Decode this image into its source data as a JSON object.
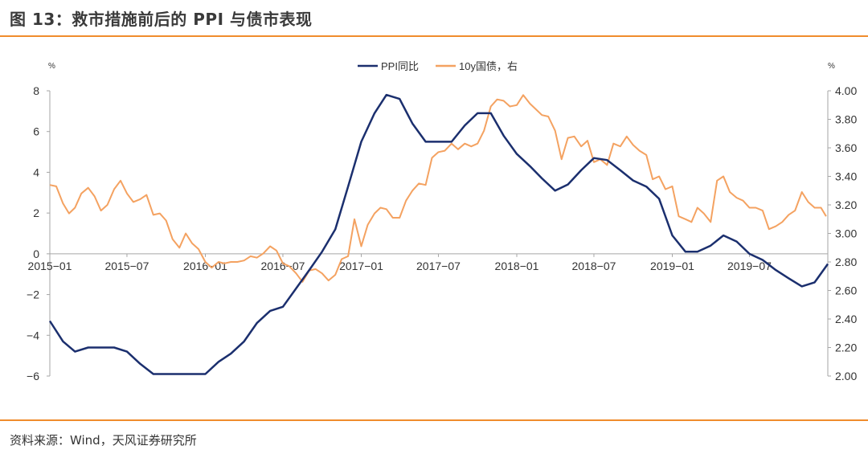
{
  "title": "图 13：救市措施前后的 PPI 与债市表现",
  "source": "资料来源：Wind，天风证券研究所",
  "colors": {
    "accent_rule": "#f08c2c",
    "ppi": "#1b2f6e",
    "yield": "#f4a261"
  },
  "chart_data": {
    "type": "line",
    "left_axis": {
      "unit": "%",
      "ylim": [
        -6,
        8
      ],
      "ticks": [
        "8",
        "6",
        "4",
        "2",
        "0",
        "−2",
        "−4",
        "−6"
      ],
      "tick_values": [
        8,
        6,
        4,
        2,
        0,
        -2,
        -4,
        -6
      ]
    },
    "right_axis": {
      "unit": "%",
      "ylim": [
        2.0,
        4.0
      ],
      "ticks": [
        "4.00",
        "3.80",
        "3.60",
        "3.40",
        "3.20",
        "3.00",
        "2.80",
        "2.60",
        "2.40",
        "2.20",
        "2.00"
      ],
      "tick_values": [
        4.0,
        3.8,
        3.6,
        3.4,
        3.2,
        3.0,
        2.8,
        2.6,
        2.4,
        2.2,
        2.0
      ]
    },
    "x_ticks": [
      "2015−01",
      "2015−07",
      "2016−01",
      "2016−07",
      "2017−01",
      "2017−07",
      "2018−01",
      "2018−07",
      "2019−01",
      "2019−07"
    ],
    "x_tick_dates": [
      "2015-01-01",
      "2015-07-01",
      "2016-01-01",
      "2016-07-01",
      "2017-01-01",
      "2017-07-01",
      "2018-01-01",
      "2018-07-01",
      "2019-01-01",
      "2019-07-01"
    ],
    "grid": false,
    "legend": {
      "placement": "top-center",
      "entries": [
        "PPI同比",
        "10y国债，右"
      ]
    },
    "series": [
      {
        "name": "PPI同比",
        "axis": "left",
        "frequency": "monthly",
        "x": [
          "2014-12",
          "2015-01",
          "2015-02",
          "2015-03",
          "2015-04",
          "2015-05",
          "2015-06",
          "2015-07",
          "2015-08",
          "2015-09",
          "2015-10",
          "2015-11",
          "2015-12",
          "2016-01",
          "2016-02",
          "2016-03",
          "2016-04",
          "2016-05",
          "2016-06",
          "2016-07",
          "2016-08",
          "2016-09",
          "2016-10",
          "2016-11",
          "2016-12",
          "2017-01",
          "2017-02",
          "2017-03",
          "2017-04",
          "2017-05",
          "2017-06",
          "2017-07",
          "2017-08",
          "2017-09",
          "2017-10",
          "2017-11",
          "2017-12",
          "2018-01",
          "2018-02",
          "2018-03",
          "2018-04",
          "2018-05",
          "2018-06",
          "2018-07",
          "2018-08",
          "2018-09",
          "2018-10",
          "2018-11",
          "2018-12",
          "2019-01",
          "2019-02",
          "2019-03",
          "2019-04",
          "2019-05",
          "2019-06",
          "2019-07",
          "2019-08",
          "2019-09",
          "2019-10",
          "2019-11",
          "2019-12"
        ],
        "values": [
          -3.3,
          -4.3,
          -4.8,
          -4.6,
          -4.6,
          -4.6,
          -4.8,
          -5.4,
          -5.9,
          -5.9,
          -5.9,
          -5.9,
          -5.9,
          -5.3,
          -4.9,
          -4.3,
          -3.4,
          -2.8,
          -2.6,
          -1.7,
          -0.8,
          0.1,
          1.2,
          3.3,
          5.5,
          6.9,
          7.8,
          7.6,
          6.4,
          5.5,
          5.5,
          5.5,
          6.3,
          6.9,
          6.9,
          5.8,
          4.9,
          4.3,
          3.7,
          3.1,
          3.4,
          4.1,
          4.7,
          4.6,
          4.1,
          3.6,
          3.3,
          2.7,
          0.9,
          0.1,
          0.1,
          0.4,
          0.9,
          0.6,
          0.0,
          -0.3,
          -0.8,
          -1.2,
          -1.6,
          -1.4,
          -0.5
        ]
      },
      {
        "name": "10y国债，右",
        "axis": "right",
        "points": [
          [
            "2015-01-01",
            3.34
          ],
          [
            "2015-01-16",
            3.33
          ],
          [
            "2015-02-01",
            3.21
          ],
          [
            "2015-02-15",
            3.14
          ],
          [
            "2015-03-01",
            3.18
          ],
          [
            "2015-03-16",
            3.28
          ],
          [
            "2015-04-01",
            3.32
          ],
          [
            "2015-04-16",
            3.26
          ],
          [
            "2015-05-01",
            3.16
          ],
          [
            "2015-05-16",
            3.2
          ],
          [
            "2015-06-01",
            3.31
          ],
          [
            "2015-06-16",
            3.37
          ],
          [
            "2015-07-01",
            3.28
          ],
          [
            "2015-07-16",
            3.22
          ],
          [
            "2015-08-01",
            3.24
          ],
          [
            "2015-08-16",
            3.27
          ],
          [
            "2015-09-01",
            3.13
          ],
          [
            "2015-09-16",
            3.14
          ],
          [
            "2015-10-01",
            3.09
          ],
          [
            "2015-10-16",
            2.96
          ],
          [
            "2015-11-01",
            2.9
          ],
          [
            "2015-11-16",
            3.0
          ],
          [
            "2015-12-01",
            2.93
          ],
          [
            "2015-12-16",
            2.89
          ],
          [
            "2016-01-01",
            2.8
          ],
          [
            "2016-01-16",
            2.76
          ],
          [
            "2016-02-01",
            2.8
          ],
          [
            "2016-02-15",
            2.79
          ],
          [
            "2016-03-01",
            2.8
          ],
          [
            "2016-03-16",
            2.8
          ],
          [
            "2016-04-01",
            2.81
          ],
          [
            "2016-04-16",
            2.84
          ],
          [
            "2016-05-01",
            2.83
          ],
          [
            "2016-05-16",
            2.86
          ],
          [
            "2016-06-01",
            2.91
          ],
          [
            "2016-06-16",
            2.88
          ],
          [
            "2016-07-01",
            2.79
          ],
          [
            "2016-07-16",
            2.77
          ],
          [
            "2016-08-01",
            2.72
          ],
          [
            "2016-08-16",
            2.66
          ],
          [
            "2016-09-01",
            2.74
          ],
          [
            "2016-09-16",
            2.75
          ],
          [
            "2016-10-01",
            2.72
          ],
          [
            "2016-10-16",
            2.67
          ],
          [
            "2016-11-01",
            2.71
          ],
          [
            "2016-11-16",
            2.82
          ],
          [
            "2016-12-01",
            2.84
          ],
          [
            "2016-12-16",
            3.1
          ],
          [
            "2017-01-01",
            2.91
          ],
          [
            "2017-01-16",
            3.06
          ],
          [
            "2017-02-01",
            3.14
          ],
          [
            "2017-02-15",
            3.18
          ],
          [
            "2017-03-01",
            3.17
          ],
          [
            "2017-03-16",
            3.11
          ],
          [
            "2017-04-01",
            3.11
          ],
          [
            "2017-04-16",
            3.23
          ],
          [
            "2017-05-01",
            3.3
          ],
          [
            "2017-05-16",
            3.35
          ],
          [
            "2017-06-01",
            3.34
          ],
          [
            "2017-06-16",
            3.53
          ],
          [
            "2017-07-01",
            3.57
          ],
          [
            "2017-07-16",
            3.58
          ],
          [
            "2017-08-01",
            3.63
          ],
          [
            "2017-08-16",
            3.59
          ],
          [
            "2017-09-01",
            3.63
          ],
          [
            "2017-09-16",
            3.61
          ],
          [
            "2017-10-01",
            3.63
          ],
          [
            "2017-10-16",
            3.72
          ],
          [
            "2017-11-01",
            3.89
          ],
          [
            "2017-11-16",
            3.94
          ],
          [
            "2017-12-01",
            3.93
          ],
          [
            "2017-12-16",
            3.89
          ],
          [
            "2018-01-01",
            3.9
          ],
          [
            "2018-01-16",
            3.97
          ],
          [
            "2018-02-01",
            3.91
          ],
          [
            "2018-02-15",
            3.87
          ],
          [
            "2018-03-01",
            3.83
          ],
          [
            "2018-03-16",
            3.82
          ],
          [
            "2018-04-01",
            3.72
          ],
          [
            "2018-04-16",
            3.52
          ],
          [
            "2018-05-01",
            3.67
          ],
          [
            "2018-05-16",
            3.68
          ],
          [
            "2018-06-01",
            3.61
          ],
          [
            "2018-06-16",
            3.65
          ],
          [
            "2018-07-01",
            3.5
          ],
          [
            "2018-07-16",
            3.52
          ],
          [
            "2018-08-01",
            3.48
          ],
          [
            "2018-08-16",
            3.63
          ],
          [
            "2018-09-01",
            3.61
          ],
          [
            "2018-09-16",
            3.68
          ],
          [
            "2018-10-01",
            3.62
          ],
          [
            "2018-10-16",
            3.58
          ],
          [
            "2018-11-01",
            3.55
          ],
          [
            "2018-11-16",
            3.38
          ],
          [
            "2018-12-01",
            3.4
          ],
          [
            "2018-12-16",
            3.31
          ],
          [
            "2019-01-01",
            3.33
          ],
          [
            "2019-01-16",
            3.12
          ],
          [
            "2019-02-01",
            3.1
          ],
          [
            "2019-02-15",
            3.08
          ],
          [
            "2019-03-01",
            3.18
          ],
          [
            "2019-03-16",
            3.14
          ],
          [
            "2019-04-01",
            3.08
          ],
          [
            "2019-04-16",
            3.37
          ],
          [
            "2019-05-01",
            3.4
          ],
          [
            "2019-05-16",
            3.29
          ],
          [
            "2019-06-01",
            3.25
          ],
          [
            "2019-06-16",
            3.23
          ],
          [
            "2019-07-01",
            3.18
          ],
          [
            "2019-07-16",
            3.18
          ],
          [
            "2019-08-01",
            3.16
          ],
          [
            "2019-08-16",
            3.03
          ],
          [
            "2019-09-01",
            3.05
          ],
          [
            "2019-09-16",
            3.08
          ],
          [
            "2019-10-01",
            3.13
          ],
          [
            "2019-10-16",
            3.16
          ],
          [
            "2019-11-01",
            3.29
          ],
          [
            "2019-11-16",
            3.22
          ],
          [
            "2019-12-01",
            3.18
          ],
          [
            "2019-12-16",
            3.18
          ],
          [
            "2019-12-28",
            3.12
          ]
        ]
      }
    ]
  }
}
